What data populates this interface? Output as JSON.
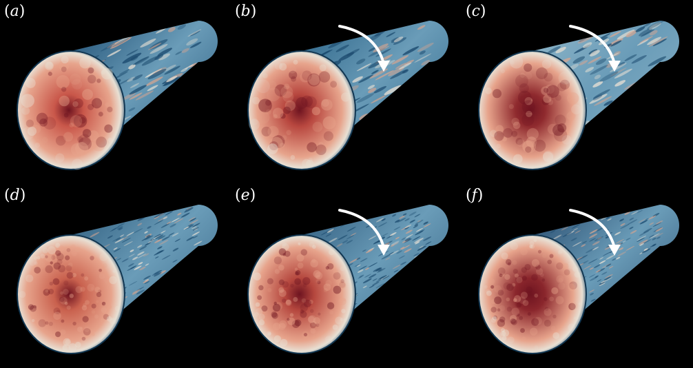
{
  "figure": {
    "background": "#000000",
    "panels": [
      {
        "id": "a",
        "label_open": "(",
        "letter": "a",
        "label_close": ")",
        "rotation_arrow": false,
        "resolution": "coarse",
        "core_color": "#c9574a",
        "wall_color": "#1f4f74"
      },
      {
        "id": "b",
        "label_open": "(",
        "letter": "b",
        "label_close": ")",
        "rotation_arrow": true,
        "resolution": "coarse",
        "core_color": "#b8473f",
        "wall_color": "#2a6286"
      },
      {
        "id": "c",
        "label_open": "(",
        "letter": "c",
        "label_close": ")",
        "rotation_arrow": true,
        "resolution": "coarse",
        "core_color": "#8f2a2e",
        "wall_color": "#8fb6c9"
      },
      {
        "id": "d",
        "label_open": "(",
        "letter": "d",
        "label_close": ")",
        "rotation_arrow": false,
        "resolution": "fine",
        "core_color": "#c9614e",
        "wall_color": "#2f5d7e"
      },
      {
        "id": "e",
        "label_open": "(",
        "letter": "e",
        "label_close": ")",
        "rotation_arrow": true,
        "resolution": "fine",
        "core_color": "#b5473e",
        "wall_color": "#2e5a7c"
      },
      {
        "id": "f",
        "label_open": "(",
        "letter": "f",
        "label_close": ")",
        "rotation_arrow": true,
        "resolution": "fine",
        "core_color": "#8a262c",
        "wall_color": "#24476a"
      }
    ],
    "arrow_color": "#ffffff",
    "arrow_icon": "curved-rotation-arrow-icon",
    "colormap": [
      "#1b4a6e",
      "#6a9cb8",
      "#e8e0d4",
      "#e7a48c",
      "#c0504a",
      "#6e1420"
    ]
  }
}
